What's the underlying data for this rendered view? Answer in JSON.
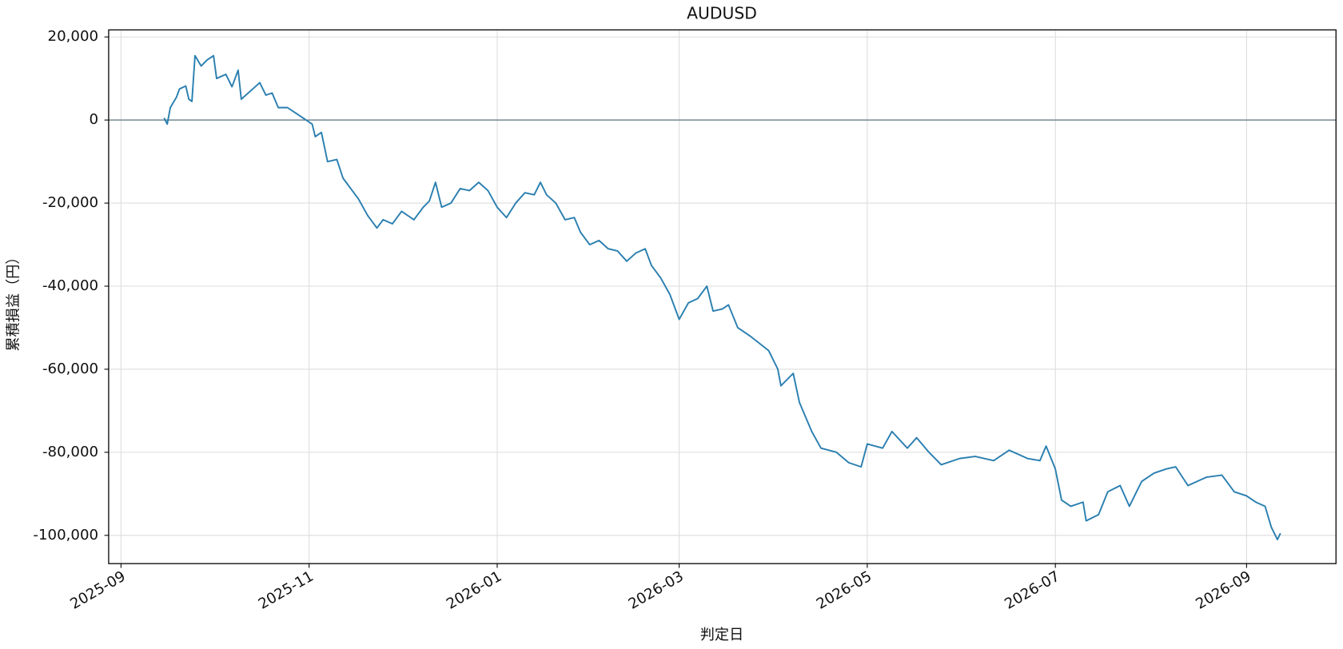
{
  "chart_data": {
    "type": "line",
    "title": "AUDUSD",
    "x_label": "判定日",
    "y_label": "累積損益（円）",
    "x": [
      "2025-09-15",
      "2025-09-16",
      "2025-09-17",
      "2025-09-19",
      "2025-09-20",
      "2025-09-22",
      "2025-09-23",
      "2025-09-24",
      "2025-09-25",
      "2025-09-27",
      "2025-09-29",
      "2025-10-01",
      "2025-10-02",
      "2025-10-05",
      "2025-10-07",
      "2025-10-09",
      "2025-10-10",
      "2025-10-13",
      "2025-10-16",
      "2025-10-18",
      "2025-10-20",
      "2025-10-22",
      "2025-10-25",
      "2025-10-28",
      "2025-10-31",
      "2025-11-02",
      "2025-11-03",
      "2025-11-05",
      "2025-11-07",
      "2025-11-10",
      "2025-11-12",
      "2025-11-15",
      "2025-11-17",
      "2025-11-20",
      "2025-11-23",
      "2025-11-25",
      "2025-11-28",
      "2025-12-01",
      "2025-12-05",
      "2025-12-08",
      "2025-12-10",
      "2025-12-12",
      "2025-12-14",
      "2025-12-17",
      "2025-12-20",
      "2025-12-23",
      "2025-12-26",
      "2025-12-29",
      "2026-01-01",
      "2026-01-04",
      "2026-01-07",
      "2026-01-10",
      "2026-01-13",
      "2026-01-15",
      "2026-01-17",
      "2026-01-20",
      "2026-01-23",
      "2026-01-26",
      "2026-01-28",
      "2026-01-31",
      "2026-02-03",
      "2026-02-06",
      "2026-02-09",
      "2026-02-12",
      "2026-02-15",
      "2026-02-18",
      "2026-02-20",
      "2026-02-23",
      "2026-02-26",
      "2026-03-01",
      "2026-03-04",
      "2026-03-07",
      "2026-03-10",
      "2026-03-12",
      "2026-03-15",
      "2026-03-17",
      "2026-03-20",
      "2026-03-24",
      "2026-03-30",
      "2026-04-02",
      "2026-04-03",
      "2026-04-07",
      "2026-04-09",
      "2026-04-13",
      "2026-04-16",
      "2026-04-21",
      "2026-04-25",
      "2026-04-29",
      "2026-05-01",
      "2026-05-06",
      "2026-05-09",
      "2026-05-14",
      "2026-05-17",
      "2026-05-21",
      "2026-05-25",
      "2026-05-31",
      "2026-06-05",
      "2026-06-11",
      "2026-06-16",
      "2026-06-22",
      "2026-06-26",
      "2026-06-28",
      "2026-07-01",
      "2026-07-03",
      "2026-07-06",
      "2026-07-10",
      "2026-07-11",
      "2026-07-15",
      "2026-07-18",
      "2026-07-22",
      "2026-07-25",
      "2026-07-29",
      "2026-08-02",
      "2026-08-06",
      "2026-08-09",
      "2026-08-13",
      "2026-08-19",
      "2026-08-24",
      "2026-08-28",
      "2026-09-01",
      "2026-09-04",
      "2026-09-07",
      "2026-09-09",
      "2026-09-11",
      "2026-09-12"
    ],
    "series": [
      {
        "name": "AUDUSD",
        "color": "#2a7fb0",
        "values": [
          500,
          -1000,
          3000,
          5500,
          7500,
          8200,
          5000,
          4500,
          15500,
          13000,
          14500,
          15500,
          10000,
          11000,
          8000,
          12000,
          5000,
          7000,
          9000,
          6000,
          6500,
          3000,
          3000,
          1500,
          0,
          -1000,
          -4000,
          -3000,
          -10000,
          -9500,
          -14000,
          -17000,
          -19000,
          -23000,
          -26000,
          -24000,
          -25000,
          -22000,
          -24000,
          -21000,
          -19500,
          -15000,
          -21000,
          -20000,
          -16500,
          -17000,
          -15000,
          -17000,
          -21000,
          -23500,
          -20000,
          -17500,
          -18000,
          -15000,
          -18000,
          -20000,
          -24000,
          -23500,
          -27000,
          -30000,
          -29000,
          -31000,
          -31500,
          -34000,
          -32000,
          -31000,
          -35000,
          -38000,
          -42000,
          -48000,
          -44000,
          -43000,
          -40000,
          -46000,
          -45500,
          -44500,
          -50000,
          -52000,
          -55500,
          -60000,
          -64000,
          -61000,
          -68000,
          -75000,
          -79000,
          -80000,
          -82500,
          -83500,
          -78000,
          -79000,
          -75000,
          -79000,
          -76500,
          -80000,
          -83000,
          -81500,
          -81000,
          -82000,
          -79500,
          -81500,
          -82000,
          -78500,
          -84000,
          -91500,
          -93000,
          -92000,
          -96500,
          -95000,
          -89500,
          -88000,
          -93000,
          -87000,
          -85000,
          -84000,
          -83500,
          -88000,
          -86000,
          -85500,
          -89500,
          -90500,
          -92000,
          -93000,
          -98000,
          -101000,
          -99500
        ]
      }
    ],
    "xlim": [
      "2025-08-28",
      "2026-09-30"
    ],
    "xticks": [
      "2025-09",
      "2025-11",
      "2026-01",
      "2026-03",
      "2026-05",
      "2026-07",
      "2026-09"
    ],
    "ylim": [
      -106800,
      21700
    ],
    "yticks": [
      {
        "value": 20000,
        "label": "20,000"
      },
      0,
      {
        "value": -20000,
        "label": "-20,000"
      },
      {
        "value": -40000,
        "label": "-40,000"
      },
      {
        "value": -60000,
        "label": "-60,000"
      },
      {
        "value": -80000,
        "label": "-80,000"
      },
      {
        "value": -100000,
        "label": "-100,000"
      }
    ],
    "hline": 0,
    "grid": true
  }
}
